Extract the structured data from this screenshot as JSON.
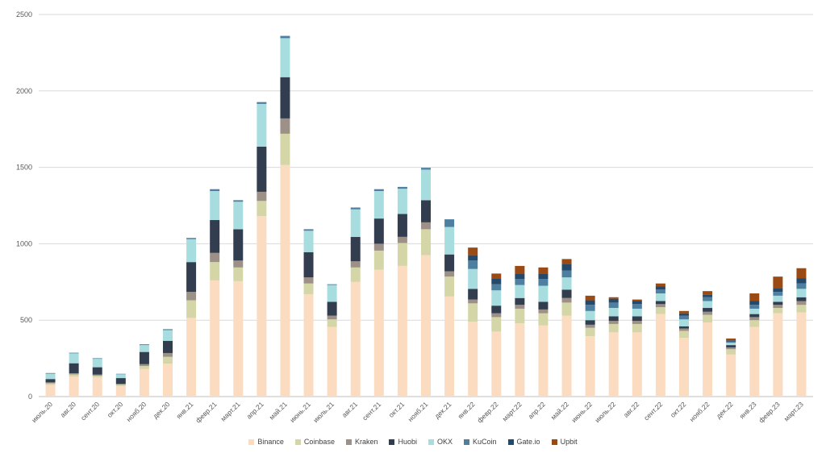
{
  "chart_data": {
    "type": "bar",
    "stacked": true,
    "title": "",
    "xlabel": "",
    "ylabel": "",
    "ylim": [
      0,
      2500
    ],
    "yticks": [
      0,
      500,
      1000,
      1500,
      2000,
      2500
    ],
    "grid": true,
    "legend_position": "bottom",
    "categories": [
      "июль.20",
      "авг.20",
      "сент.20",
      "окт.20",
      "нояб.20",
      "дек.20",
      "янв.21",
      "февр.21",
      "март.21",
      "апр.21",
      "май.21",
      "июнь.21",
      "июль.21",
      "авг.21",
      "сент.21",
      "окт.21",
      "нояб.21",
      "дек.21",
      "янв.22",
      "февр.22",
      "март.22",
      "апр.22",
      "май.22",
      "июнь.22",
      "июль.22",
      "авг.22",
      "сент.22",
      "окт.22",
      "нояб.22",
      "дек.22",
      "янв.23",
      "февр.23",
      "март.23"
    ],
    "series": [
      {
        "name": "Binance",
        "color": "#fbdcc1",
        "values": [
          75,
          130,
          125,
          68,
          180,
          215,
          515,
          760,
          755,
          1180,
          1515,
          670,
          455,
          750,
          830,
          855,
          925,
          655,
          490,
          425,
          480,
          465,
          530,
          395,
          420,
          420,
          540,
          385,
          485,
          275,
          455,
          545,
          550
        ]
      },
      {
        "name": "Coinbase",
        "color": "#d5d6a8",
        "values": [
          12,
          15,
          12,
          10,
          20,
          45,
          115,
          120,
          90,
          100,
          205,
          70,
          50,
          95,
          125,
          150,
          170,
          130,
          120,
          95,
          95,
          80,
          85,
          55,
          55,
          55,
          45,
          45,
          50,
          35,
          45,
          35,
          50
        ]
      },
      {
        "name": "Kraken",
        "color": "#9c9087",
        "values": [
          6,
          8,
          7,
          5,
          12,
          25,
          55,
          60,
          45,
          60,
          100,
          40,
          25,
          40,
          45,
          40,
          45,
          35,
          25,
          25,
          25,
          25,
          30,
          20,
          20,
          20,
          20,
          15,
          20,
          12,
          20,
          20,
          25
        ]
      },
      {
        "name": "Huobi",
        "color": "#333d50",
        "values": [
          22,
          65,
          48,
          38,
          80,
          80,
          195,
          215,
          205,
          295,
          270,
          165,
          90,
          160,
          165,
          150,
          145,
          110,
          70,
          50,
          45,
          50,
          55,
          30,
          30,
          30,
          20,
          15,
          25,
          15,
          20,
          20,
          25
        ]
      },
      {
        "name": "OKX",
        "color": "#a8dde0",
        "values": [
          35,
          65,
          55,
          25,
          45,
          70,
          150,
          190,
          180,
          280,
          255,
          140,
          110,
          180,
          180,
          165,
          200,
          180,
          130,
          100,
          85,
          105,
          80,
          60,
          55,
          50,
          50,
          45,
          45,
          15,
          35,
          40,
          55
        ]
      },
      {
        "name": "KuCoin",
        "color": "#4e7fa0",
        "values": [
          4,
          4,
          4,
          3,
          5,
          6,
          8,
          12,
          10,
          12,
          15,
          10,
          5,
          12,
          12,
          12,
          12,
          50,
          55,
          40,
          40,
          45,
          45,
          40,
          35,
          30,
          25,
          25,
          25,
          8,
          25,
          25,
          35
        ]
      },
      {
        "name": "Gate.io",
        "color": "#24496a",
        "values": [
          0,
          0,
          0,
          0,
          0,
          0,
          0,
          0,
          0,
          0,
          0,
          0,
          0,
          0,
          0,
          0,
          0,
          0,
          35,
          35,
          35,
          35,
          40,
          30,
          25,
          20,
          20,
          15,
          15,
          8,
          25,
          25,
          35
        ]
      },
      {
        "name": "Upbit",
        "color": "#9b4a13",
        "values": [
          0,
          0,
          0,
          0,
          0,
          0,
          0,
          0,
          0,
          0,
          0,
          0,
          0,
          0,
          0,
          0,
          0,
          0,
          50,
          35,
          50,
          40,
          35,
          30,
          10,
          10,
          20,
          15,
          25,
          12,
          50,
          75,
          65
        ]
      }
    ]
  }
}
